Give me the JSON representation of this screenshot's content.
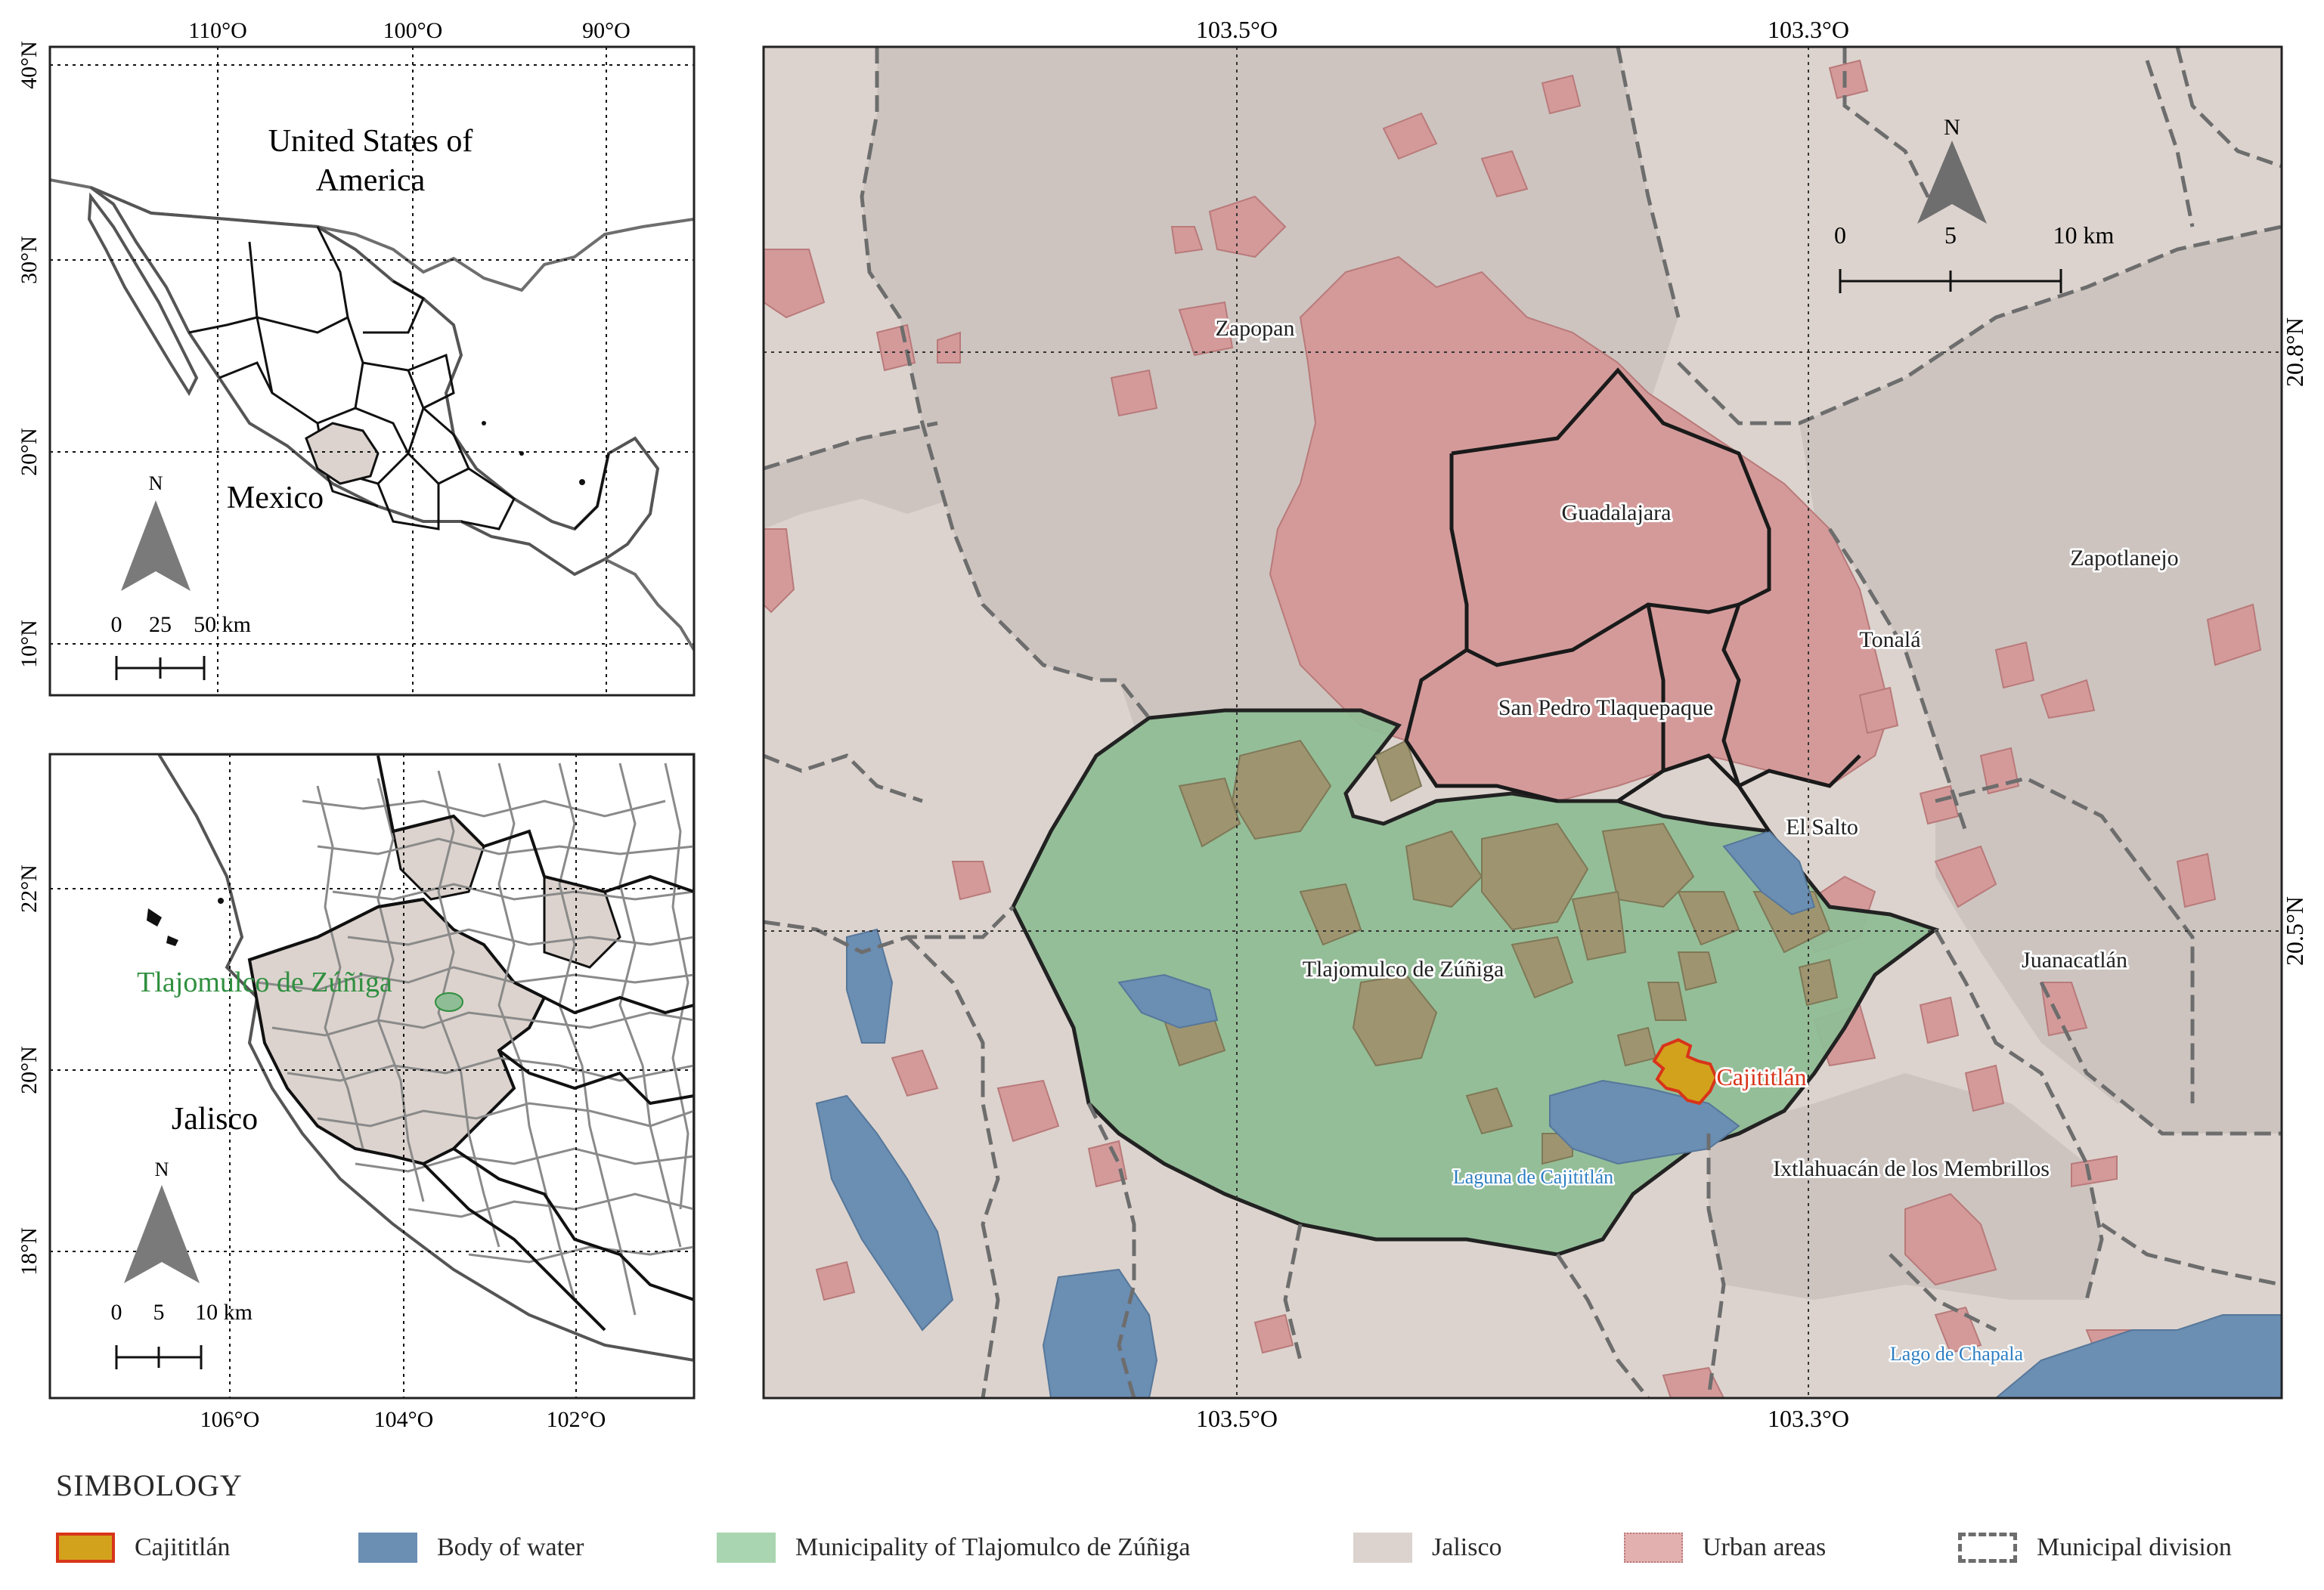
{
  "colors": {
    "jalisco": "#dcd3ce",
    "municipality_fill": "#8fbd95",
    "urban": "#d49a9a",
    "water": "#6b8eb3",
    "cajititlan": "#d3a21c",
    "cajititlan_border": "#d8341a",
    "zapopan_gray": "#cdc4c0",
    "label_water": "#2e7fc2",
    "label_muni": "#2f8f3f",
    "label_caj": "#d8341a"
  },
  "inset_mexico": {
    "top_ticks": [
      "110°O",
      "100°O",
      "90°O"
    ],
    "left_ticks": [
      "40°N",
      "30°N",
      "20°N",
      "10°N"
    ],
    "country_label_1": "United States of",
    "country_label_2": "America",
    "mexico_label": "Mexico",
    "north": "N",
    "scale_labels": [
      "0",
      "25",
      "50 km"
    ]
  },
  "inset_jalisco": {
    "bottom_ticks": [
      "106°O",
      "104°O",
      "102°O"
    ],
    "left_ticks": [
      "22°N",
      "20°N",
      "18°N"
    ],
    "municipality_label": "Tlajomulco de Zúñiga",
    "state_label": "Jalisco",
    "north": "N",
    "scale_labels": [
      "0",
      "5",
      "10 km"
    ]
  },
  "main_map": {
    "top_ticks": [
      "103.5°O",
      "103.3°O"
    ],
    "bottom_ticks": [
      "103.5°O",
      "103.3°O"
    ],
    "right_ticks": [
      "20.8°N",
      "20.5°N"
    ],
    "north": "N",
    "scale_labels": [
      "0",
      "5",
      "10 km"
    ],
    "labels": {
      "zapopan": "Zapopan",
      "guadalajara": "Guadalajara",
      "zapotlanejo": "Zapotlanejo",
      "tonala": "Tonalá",
      "tlaquepaque": "San Pedro Tlaquepaque",
      "el_salto": "El Salto",
      "tlajomulco": "Tlajomulco de Zúñiga",
      "juanacatlan": "Juanacatlán",
      "cajititlan": "Cajititlán",
      "laguna": "Laguna de Cajititlán",
      "ixtlahuacan": "Ixtlahuacán de los Membrillos",
      "chapala": "Lago de Chapala"
    }
  },
  "symbology": {
    "title": "SIMBOLOGY",
    "items": [
      {
        "label": "Cajititlán"
      },
      {
        "label": "Body of water"
      },
      {
        "label": "Municipality of Tlajomulco de Zúñiga"
      },
      {
        "label": "Jalisco"
      },
      {
        "label": "Urban areas"
      },
      {
        "label": "Municipal division"
      }
    ]
  }
}
